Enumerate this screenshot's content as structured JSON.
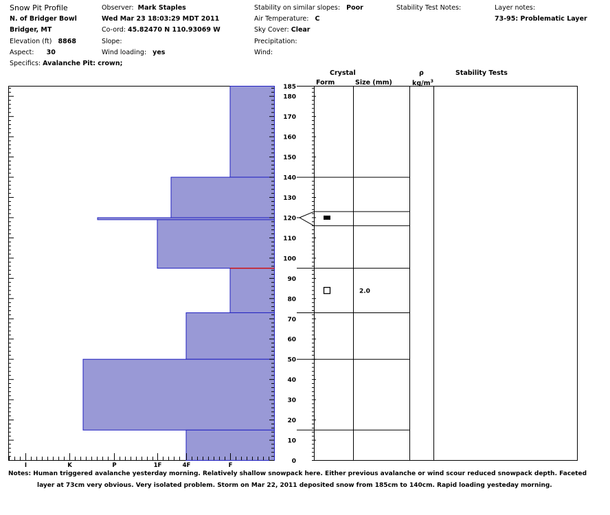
{
  "header": {
    "title": "Snow Pit Profile",
    "location": "N. of Bridger Bowl",
    "region": "Bridger, MT",
    "elevation_label": "Elevation (ft)",
    "elevation_value": "8868",
    "aspect_label": "Aspect:",
    "aspect_value": "30",
    "specifics_label": "Specifics:",
    "specifics_value": "Avalanche Pit: crown;",
    "observer_label": "Observer:",
    "observer_value": "Mark Staples",
    "datetime": "Wed Mar 23 18:03:29 MDT 2011",
    "coord_label": "Co-ord:",
    "coord_value": "45.82470 N 110.93069 W",
    "slope_label": "Slope:",
    "slope_value": "",
    "wind_loading_label": "Wind loading:",
    "wind_loading_value": "yes",
    "stability_label": "Stability on similar slopes:",
    "stability_value": "Poor",
    "air_temp_label": "Air Temperature:",
    "air_temp_value": "C",
    "sky_label": "Sky Cover:",
    "sky_value": "Clear",
    "precip_label": "Precipitation:",
    "precip_value": "",
    "wind_label": "Wind:",
    "wind_value": "",
    "stab_notes_label": "Stability Test Notes:",
    "layer_notes_label": "Layer notes:",
    "layer_notes_value": "73-95: Problematic Layer"
  },
  "columns": {
    "crystal": "Crystal",
    "form": "Form",
    "size": "Size (mm)",
    "rho": "ρ",
    "density_unit": "kg/m",
    "density_exp": "3",
    "stability_tests": "Stability Tests"
  },
  "notes": {
    "line1": "Notes:  Human triggered avalanche yesterday morning.  Relatively shallow snowpack here.  Either previous avalanche or wind scour reduced snowpack depth.  Faceted",
    "line2": "layer at 73cm very obvious.  Very isolated problem.  Storm on Mar 22, 2011 deposited snow from 185cm to 140cm.  Rapid loading yesteday morning."
  },
  "chart_data": {
    "type": "bar",
    "orientation": "horizontal",
    "title": "Snow Pit Profile",
    "depth_unit": "cm",
    "ylim": [
      0,
      185
    ],
    "y_ticks": [
      0,
      10,
      20,
      30,
      40,
      50,
      60,
      70,
      80,
      90,
      100,
      110,
      120,
      130,
      140,
      150,
      160,
      170,
      180,
      185
    ],
    "hardness_scale": [
      "I",
      "K",
      "P",
      "1F",
      "4F",
      "F"
    ],
    "hardness_layers": [
      {
        "bottom": 140,
        "top": 185,
        "hardness": "F"
      },
      {
        "bottom": 120,
        "top": 140,
        "hardness": "1F-4F"
      },
      {
        "bottom": 119,
        "top": 120,
        "hardness": "P-1F"
      },
      {
        "bottom": 95,
        "top": 119,
        "hardness": "1F"
      },
      {
        "bottom": 73,
        "top": 95,
        "hardness": "F"
      },
      {
        "bottom": 50,
        "top": 73,
        "hardness": "4F"
      },
      {
        "bottom": 15,
        "top": 50,
        "hardness": "K-P"
      },
      {
        "bottom": 0,
        "top": 15,
        "hardness": "4F"
      }
    ],
    "critical_layer_depth": 95,
    "layer_boundaries": [
      140,
      123,
      116,
      95,
      73,
      50,
      15
    ],
    "crystal_observations": [
      {
        "depth": 120,
        "form": "filled-square",
        "size": ""
      },
      {
        "depth": 84,
        "form": "open-square",
        "size": "2.0"
      }
    ]
  }
}
